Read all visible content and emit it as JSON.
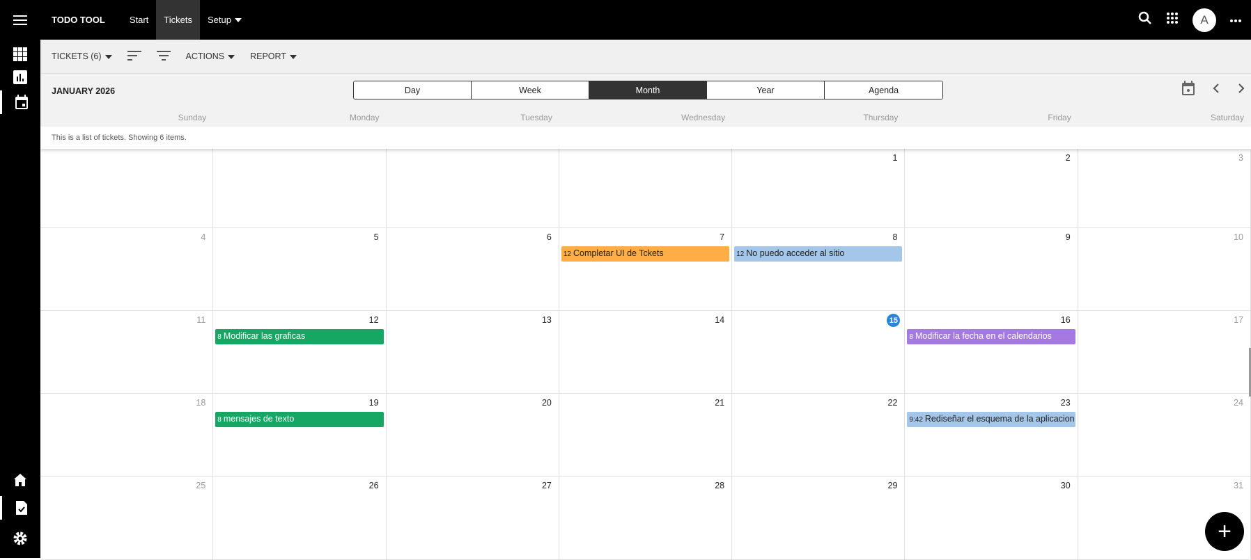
{
  "app": {
    "title": "TODO TOOL",
    "nav": [
      {
        "label": "Start"
      },
      {
        "label": "Tickets",
        "active": true
      },
      {
        "label": "Setup",
        "dropdown": true
      }
    ],
    "avatar": "A"
  },
  "icons": {
    "menu": "hamburger-icon",
    "search": "search-icon",
    "apps": "apps-grid-icon",
    "more": "more-horizontal-icon"
  },
  "sidebar": {
    "top": [
      "apps-grid-icon",
      "bar-chart-icon",
      "calendar-icon"
    ],
    "bottom": [
      "home-icon",
      "ticket-check-icon",
      "gear-icon"
    ],
    "selected": [
      "calendar-icon",
      "ticket-check-icon"
    ]
  },
  "toolbar": {
    "tickets": "TICKETS (6)",
    "actions": "ACTIONS",
    "report": "REPORT"
  },
  "calendar": {
    "month_label": "JANUARY 2026",
    "views": [
      "Day",
      "Week",
      "Month",
      "Year",
      "Agenda"
    ],
    "active_view": "Month",
    "day_names": [
      "Sunday",
      "Monday",
      "Tuesday",
      "Wednesday",
      "Thursday",
      "Friday",
      "Saturday"
    ],
    "info": "This is a list of tickets. Showing 6 items.",
    "today": 15,
    "weeks": [
      [
        "",
        "",
        "",
        "",
        "1",
        "2",
        "3"
      ],
      [
        "4",
        "5",
        "6",
        "7",
        "8",
        "9",
        "10"
      ],
      [
        "11",
        "12",
        "13",
        "14",
        "15",
        "16",
        "17"
      ],
      [
        "18",
        "19",
        "20",
        "21",
        "22",
        "23",
        "24"
      ],
      [
        "25",
        "26",
        "27",
        "28",
        "29",
        "30",
        "31"
      ]
    ],
    "events": [
      {
        "day": 7,
        "time": "12",
        "title": "Completar UI de Tckets",
        "color": "#ffad46",
        "text": "#222"
      },
      {
        "day": 8,
        "time": "12",
        "title": "No puedo acceder al sitio",
        "color": "#a4c6e8",
        "text": "#222"
      },
      {
        "day": 12,
        "time": "8",
        "title": "Modificar las graficas",
        "color": "#16a765",
        "text": "#fff"
      },
      {
        "day": 16,
        "time": "8",
        "title": "Modificar la fecha en el calendarios",
        "color": "#a47ae2",
        "text": "#fff"
      },
      {
        "day": 19,
        "time": "8",
        "title": "mensajes de texto",
        "color": "#16a765",
        "text": "#fff"
      },
      {
        "day": 23,
        "time": "9:42",
        "title": "Rediseñar el esquema de la aplicacion Tol",
        "color": "#a4c6e8",
        "text": "#222"
      }
    ]
  },
  "fab": "+"
}
